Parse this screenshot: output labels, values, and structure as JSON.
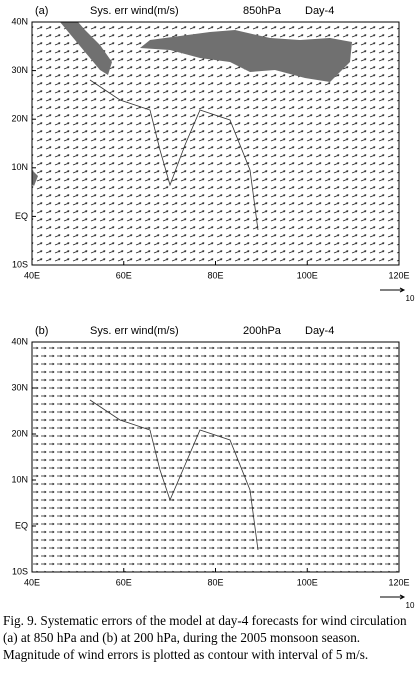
{
  "panels": [
    {
      "label": "(a)",
      "title": "Sys. err wind(m/s)",
      "level": "850hPa",
      "day": "Day-4",
      "xlim": [
        40,
        120
      ],
      "xticks": [
        {
          "value": 40,
          "label": "40E"
        },
        {
          "value": 60,
          "label": "60E"
        },
        {
          "value": 80,
          "label": "80E"
        },
        {
          "value": 100,
          "label": "100E"
        },
        {
          "value": 120,
          "label": "120E"
        }
      ],
      "ylim": [
        -10,
        40
      ],
      "yticks": [
        {
          "value": -10,
          "label": "10S"
        },
        {
          "value": 0,
          "label": "EQ"
        },
        {
          "value": 10,
          "label": "10N"
        },
        {
          "value": 20,
          "label": "20N"
        },
        {
          "value": 30,
          "label": "30N"
        },
        {
          "value": 40,
          "label": "40N"
        }
      ],
      "reference_vector": 10
    },
    {
      "label": "(b)",
      "title": "Sys. err wind(m/s)",
      "level": "200hPa",
      "day": "Day-4",
      "xlim": [
        40,
        120
      ],
      "xticks": [
        {
          "value": 40,
          "label": "40E"
        },
        {
          "value": 60,
          "label": "60E"
        },
        {
          "value": 80,
          "label": "80E"
        },
        {
          "value": 100,
          "label": "100E"
        },
        {
          "value": 120,
          "label": "120E"
        }
      ],
      "ylim": [
        -10,
        40
      ],
      "yticks": [
        {
          "value": -10,
          "label": "10S"
        },
        {
          "value": 0,
          "label": "EQ"
        },
        {
          "value": 10,
          "label": "10N"
        },
        {
          "value": 20,
          "label": "20N"
        },
        {
          "value": 30,
          "label": "30N"
        },
        {
          "value": 40,
          "label": "40N"
        }
      ],
      "reference_vector": 10
    }
  ],
  "caption": "Fig. 9. Systematic errors of the model at day-4 forecasts for wind circulation (a) at 850 hPa and (b) at 200 hPa, during the 2005 monsoon season. Magnitude of wind errors is plotted as contour with interval of 5 m/s."
}
